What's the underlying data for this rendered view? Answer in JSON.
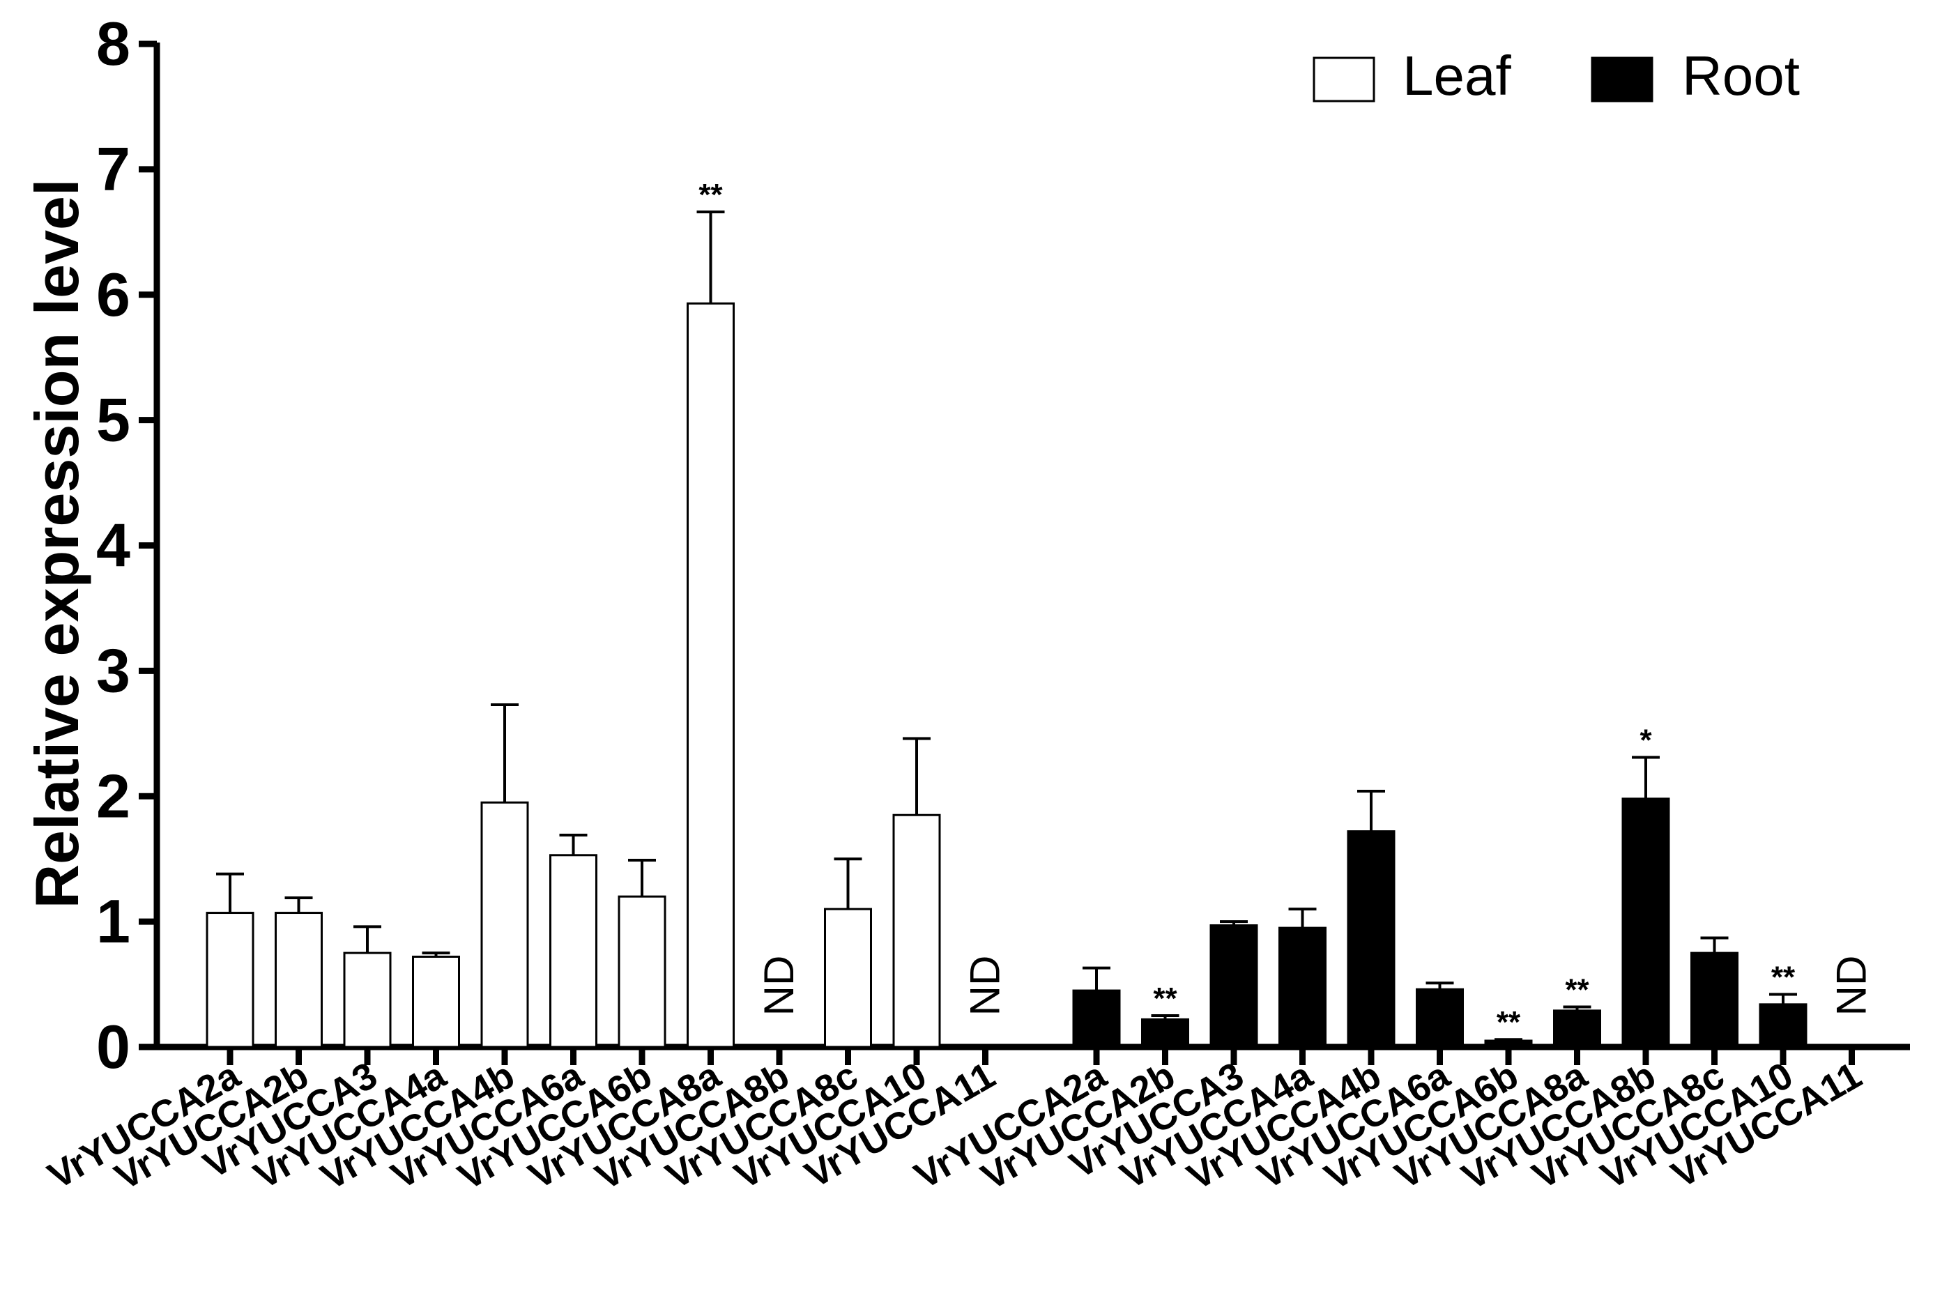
{
  "chart_data": {
    "type": "bar",
    "ylabel": "Relative expression level",
    "ylim": [
      0,
      8
    ],
    "yticks": [
      "0",
      "1",
      "2",
      "3",
      "4",
      "5",
      "6",
      "7",
      "8"
    ],
    "legend": {
      "placement": "top-right"
    },
    "series": [
      {
        "name": "Leaf",
        "color": "#ffffff",
        "bars": [
          {
            "label": "VrYUCCA2a",
            "value": 1.07,
            "error": 0.31,
            "sig": ""
          },
          {
            "label": "VrYUCCA2b",
            "value": 1.07,
            "error": 0.12,
            "sig": ""
          },
          {
            "label": "VrYUCCA3",
            "value": 0.75,
            "error": 0.21,
            "sig": ""
          },
          {
            "label": "VrYUCCA4a",
            "value": 0.72,
            "error": 0.03,
            "sig": ""
          },
          {
            "label": "VrYUCCA4b",
            "value": 1.95,
            "error": 0.78,
            "sig": ""
          },
          {
            "label": "VrYUCCA6a",
            "value": 1.53,
            "error": 0.16,
            "sig": ""
          },
          {
            "label": "VrYUCCA6b",
            "value": 1.2,
            "error": 0.29,
            "sig": ""
          },
          {
            "label": "VrYUCCA8a",
            "value": 5.93,
            "error": 0.73,
            "sig": "**"
          },
          {
            "label": "VrYUCCA8b",
            "value": null,
            "error": null,
            "sig": "",
            "note": "ND"
          },
          {
            "label": "VrYUCCA8c",
            "value": 1.1,
            "error": 0.4,
            "sig": ""
          },
          {
            "label": "VrYUCCA10",
            "value": 1.85,
            "error": 0.61,
            "sig": ""
          },
          {
            "label": "VrYUCCA11",
            "value": null,
            "error": null,
            "sig": "",
            "note": "ND"
          }
        ]
      },
      {
        "name": "Root",
        "color": "#000000",
        "bars": [
          {
            "label": "VrYUCCA2a",
            "value": 0.45,
            "error": 0.18,
            "sig": ""
          },
          {
            "label": "VrYUCCA2b",
            "value": 0.22,
            "error": 0.03,
            "sig": "**"
          },
          {
            "label": "VrYUCCA3",
            "value": 0.97,
            "error": 0.03,
            "sig": ""
          },
          {
            "label": "VrYUCCA4a",
            "value": 0.95,
            "error": 0.15,
            "sig": ""
          },
          {
            "label": "VrYUCCA4b",
            "value": 1.72,
            "error": 0.32,
            "sig": ""
          },
          {
            "label": "VrYUCCA6a",
            "value": 0.46,
            "error": 0.05,
            "sig": ""
          },
          {
            "label": "VrYUCCA6b",
            "value": 0.05,
            "error": 0.01,
            "sig": "**"
          },
          {
            "label": "VrYUCCA8a",
            "value": 0.29,
            "error": 0.03,
            "sig": "**"
          },
          {
            "label": "VrYUCCA8b",
            "value": 1.98,
            "error": 0.33,
            "sig": "*"
          },
          {
            "label": "VrYUCCA8c",
            "value": 0.75,
            "error": 0.12,
            "sig": ""
          },
          {
            "label": "VrYUCCA10",
            "value": 0.34,
            "error": 0.08,
            "sig": "**"
          },
          {
            "label": "VrYUCCA11",
            "value": null,
            "error": null,
            "sig": "",
            "note": "ND"
          }
        ]
      }
    ]
  }
}
